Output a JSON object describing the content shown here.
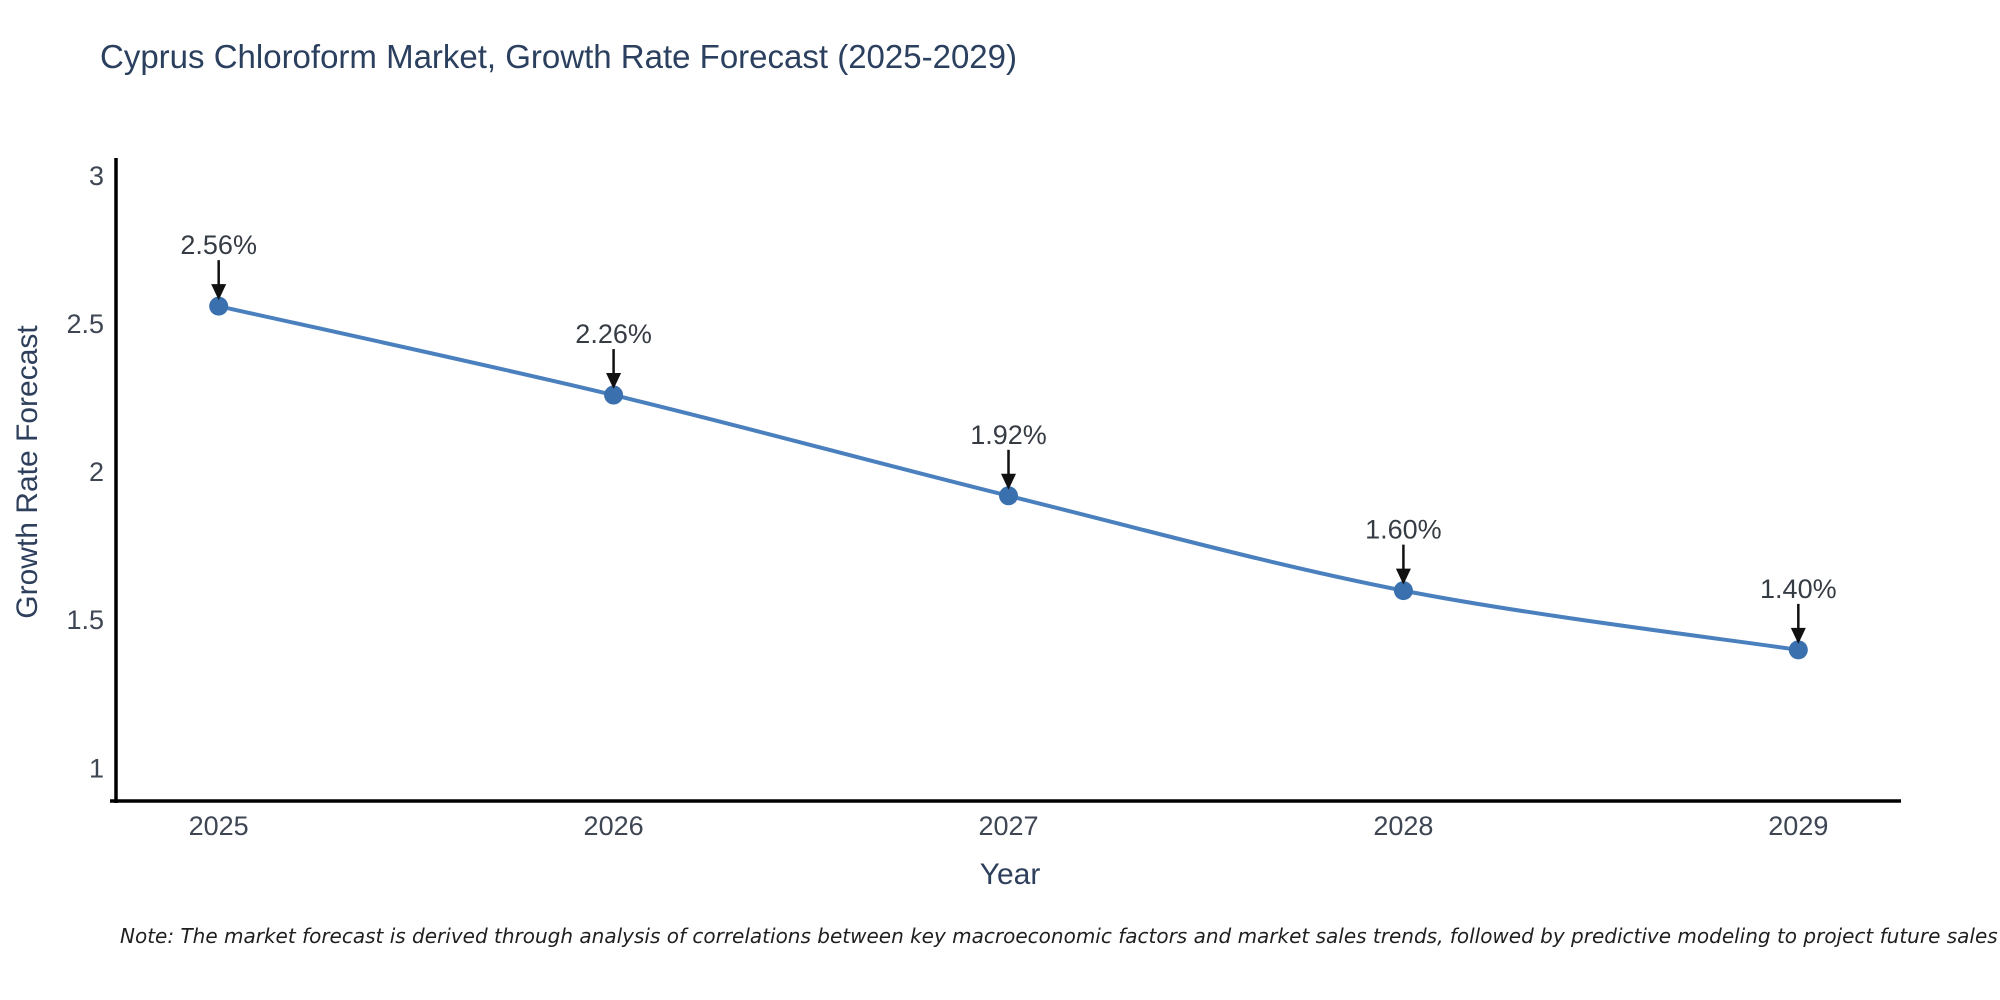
{
  "title": "Cyprus Chloroform Market, Growth Rate Forecast (2025-2029)",
  "note": "Note: The market forecast is derived through analysis of correlations between key macroeconomic factors and market sales trends, followed by predictive modeling to project future sales",
  "colors": {
    "line": "#4a80bd",
    "marker": "#3a70ad",
    "axis_line": "#000000",
    "arrow": "#111111",
    "title_text": "#2b3f5e",
    "tick_text": "#3e4653",
    "annotation_text": "#363c44",
    "note_text": "#1f1f1f"
  },
  "chart_data": {
    "type": "line",
    "title": "Cyprus Chloroform Market, Growth Rate Forecast (2025-2029)",
    "xlabel": "Year",
    "ylabel": "Growth Rate Forecast",
    "x": [
      2025,
      2026,
      2027,
      2028,
      2029
    ],
    "values": [
      2.56,
      2.26,
      1.92,
      1.6,
      1.4
    ],
    "point_labels": [
      "2.56%",
      "2.26%",
      "1.92%",
      "1.60%",
      "1.40%"
    ],
    "xtick_labels": [
      "2025",
      "2026",
      "2027",
      "2028",
      "2029"
    ],
    "yticks": [
      1,
      1.5,
      2,
      2.5,
      3
    ],
    "ytick_labels": [
      "1",
      "1.5",
      "2",
      "2.5",
      "3"
    ],
    "xlim": [
      2024.74,
      2029.26
    ],
    "ylim": [
      0.89,
      3.06
    ],
    "grid": false,
    "legend": "none",
    "line_shape": "spline",
    "marker": "circle",
    "annotation_style": "label-with-down-arrow"
  }
}
